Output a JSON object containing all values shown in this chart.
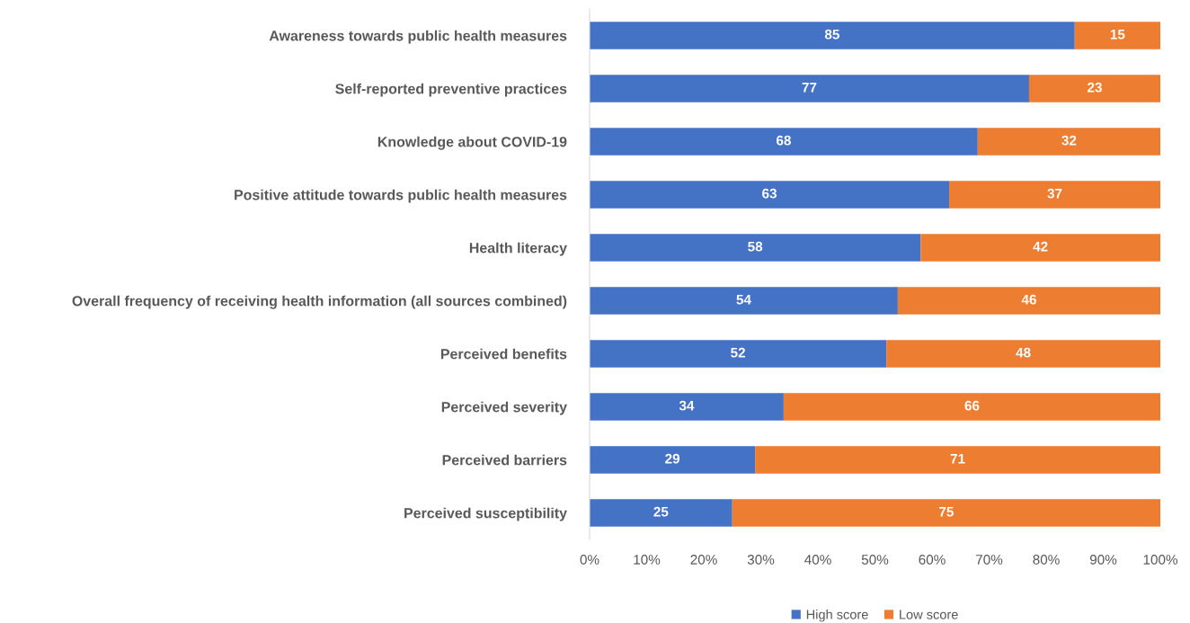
{
  "chart_data": {
    "type": "bar",
    "orientation": "horizontal",
    "stacked": true,
    "categories": [
      "Awareness towards public health measures",
      "Self-reported preventive practices",
      "Knowledge about COVID-19",
      "Positive attitude towards public health measures",
      "Health literacy",
      "Overall frequency of receiving health information (all sources combined)",
      "Perceived benefits",
      "Perceived severity",
      "Perceived barriers",
      "Perceived susceptibility"
    ],
    "series": [
      {
        "name": "High score",
        "color": "#4472c4",
        "values": [
          85,
          77,
          68,
          63,
          58,
          54,
          52,
          34,
          29,
          25
        ]
      },
      {
        "name": "Low score",
        "color": "#ed7d31",
        "values": [
          15,
          23,
          32,
          37,
          42,
          46,
          48,
          66,
          71,
          75
        ]
      }
    ],
    "xlim": [
      0,
      100
    ],
    "xticks": [
      {
        "value": 0,
        "label": "0%"
      },
      {
        "value": 10,
        "label": "10%"
      },
      {
        "value": 20,
        "label": "20%"
      },
      {
        "value": 30,
        "label": "30%"
      },
      {
        "value": 40,
        "label": "40%"
      },
      {
        "value": 50,
        "label": "50%"
      },
      {
        "value": 60,
        "label": "60%"
      },
      {
        "value": 70,
        "label": "70%"
      },
      {
        "value": 80,
        "label": "80%"
      },
      {
        "value": 90,
        "label": "90%"
      },
      {
        "value": 100,
        "label": "100%"
      }
    ],
    "data_labels": true,
    "grid": false,
    "legend": "bottom"
  }
}
